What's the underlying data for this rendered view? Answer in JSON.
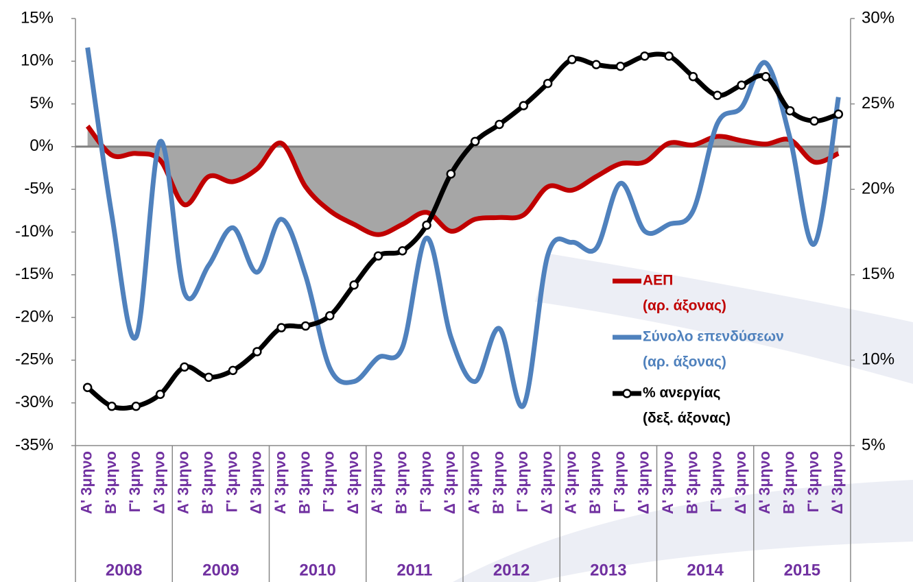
{
  "chart_data": {
    "type": "line",
    "categories": [
      "Α' 3μηνο",
      "Β' 3μηνο",
      "Γ' 3μηνο",
      "Δ' 3μηνο",
      "Α' 3μηνο",
      "Β' 3μηνο",
      "Γ' 3μηνο",
      "Δ' 3μηνο",
      "Α' 3μηνο",
      "Β' 3μηνο",
      "Γ' 3μηνο",
      "Δ' 3μηνο",
      "Α' 3μηνο",
      "Β' 3μηνο",
      "Γ' 3μηνο",
      "Δ' 3μηνο",
      "Α' 3μηνο",
      "Β' 3μηνο",
      "Γ' 3μηνο",
      "Δ' 3μηνο",
      "Α' 3μηνο",
      "Β' 3μηνο",
      "Γ' 3μηνο",
      "Δ' 3μηνο",
      "Α' 3μηνο",
      "Β' 3μηνο",
      "Γ' 3μηνο",
      "Δ' 3μηνο",
      "Α' 3μηνο",
      "Β' 3μηνο",
      "Γ' 3μηνο",
      "Δ' 3μηνο"
    ],
    "groups": [
      "2008",
      "2009",
      "2010",
      "2011",
      "2012",
      "2013",
      "2014",
      "2015"
    ],
    "series": [
      {
        "name": "ΑΕΠ",
        "legend_note": "(αρ. άξονας)",
        "color": "#c00000",
        "area_color": "#a6a6a6",
        "axis": "y",
        "values": [
          2.4,
          -1.0,
          -0.8,
          -1.6,
          -6.8,
          -3.5,
          -4.1,
          -2.6,
          0.4,
          -4.7,
          -7.5,
          -9.1,
          -10.3,
          -9.1,
          -7.7,
          -9.9,
          -8.5,
          -8.3,
          -8.0,
          -4.7,
          -5.1,
          -3.5,
          -2.0,
          -1.8,
          0.4,
          0.2,
          1.2,
          0.7,
          0.3,
          0.8,
          -1.8,
          -0.8
        ]
      },
      {
        "name": "Σύνολο επενδύσεων",
        "legend_note": "(αρ. άξονας)",
        "color": "#4f81bd",
        "axis": "y",
        "values": [
          11.6,
          -8.0,
          -22.3,
          0.6,
          -17.1,
          -13.9,
          -9.5,
          -14.7,
          -8.5,
          -15.1,
          -25.9,
          -27.5,
          -24.7,
          -23.5,
          -10.7,
          -22.3,
          -27.5,
          -21.3,
          -30.3,
          -12.7,
          -11.2,
          -11.9,
          -4.3,
          -9.9,
          -9.1,
          -7.5,
          2.7,
          4.6,
          9.8,
          1.0,
          -11.4,
          5.8
        ]
      },
      {
        "name": "% ανεργίας",
        "legend_note": "(δεξ. άξονας)",
        "color": "#000000",
        "axis": "y2",
        "markers": true,
        "values": [
          8.4,
          7.3,
          7.3,
          8.0,
          9.6,
          9.0,
          9.4,
          10.5,
          11.9,
          12.0,
          12.6,
          14.4,
          16.1,
          16.4,
          17.9,
          20.9,
          22.8,
          23.8,
          24.9,
          26.2,
          27.6,
          27.3,
          27.2,
          27.8,
          27.8,
          26.6,
          25.5,
          26.1,
          26.6,
          24.6,
          24.0,
          24.4
        ]
      }
    ],
    "ylim": [
      -35,
      15
    ],
    "yticks": [
      {
        "value": -35,
        "label": "-35%"
      },
      {
        "value": -30,
        "label": "-30%"
      },
      {
        "value": -25,
        "label": "-25%"
      },
      {
        "value": -20,
        "label": "-20%"
      },
      {
        "value": -15,
        "label": "-15%"
      },
      {
        "value": -10,
        "label": "-10%"
      },
      {
        "value": -5,
        "label": "-5%"
      },
      {
        "value": 0,
        "label": "0%"
      },
      {
        "value": 5,
        "label": "5%"
      },
      {
        "value": 10,
        "label": "10%"
      },
      {
        "value": 15,
        "label": "15%"
      }
    ],
    "y2lim": [
      5,
      30
    ],
    "y2ticks": [
      {
        "value": 5,
        "label": "5%"
      },
      {
        "value": 10,
        "label": "10%"
      },
      {
        "value": 15,
        "label": "15%"
      },
      {
        "value": 20,
        "label": "20%"
      },
      {
        "value": 25,
        "label": "25%"
      },
      {
        "value": 30,
        "label": "30%"
      }
    ],
    "label_color": "#7030a0"
  }
}
